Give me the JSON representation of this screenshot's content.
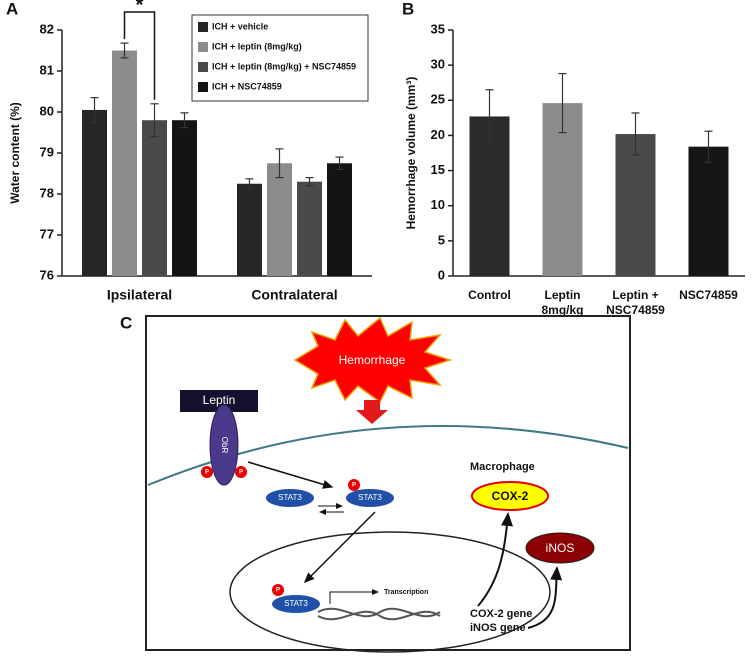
{
  "chart_data": [
    {
      "type": "bar",
      "panel_label": "A",
      "ylabel": "Water content (%)",
      "categories": [
        "Ipsilateral",
        "Contralateral"
      ],
      "series": [
        {
          "name": "ICH + vehicle",
          "color": "#262626",
          "values": [
            80.05,
            78.25
          ],
          "errors": [
            0.3,
            0.12
          ]
        },
        {
          "name": "ICH + leptin (8mg/kg)",
          "color": "#8c8c8c",
          "values": [
            81.5,
            78.75
          ],
          "errors": [
            0.18,
            0.35
          ]
        },
        {
          "name": "ICH + leptin (8mg/kg) + NSC74859",
          "color": "#4a4a4a",
          "values": [
            79.8,
            78.3
          ],
          "errors": [
            0.4,
            0.1
          ]
        },
        {
          "name": "ICH + NSC74859",
          "color": "#141414",
          "values": [
            79.8,
            78.75
          ],
          "errors": [
            0.18,
            0.15
          ]
        }
      ],
      "ylim": [
        76,
        82
      ],
      "yticks": [
        76,
        77,
        78,
        79,
        80,
        81,
        82
      ],
      "legend": "upper right",
      "annotations": [
        "*"
      ]
    },
    {
      "type": "bar",
      "panel_label": "B",
      "ylabel": "Hemorrhage volume (mm³)",
      "categories": [
        [
          "Control"
        ],
        [
          "Leptin",
          "8mg/kg"
        ],
        [
          "Leptin +",
          "NSC74859"
        ],
        [
          "NSC74859"
        ]
      ],
      "values": [
        22.7,
        24.6,
        20.2,
        18.4
      ],
      "errors": [
        3.8,
        4.2,
        3.0,
        2.2
      ],
      "colors": [
        "#2b2b2b",
        "#8c8c8c",
        "#4a4a4a",
        "#161616"
      ],
      "ylim": [
        0,
        35
      ],
      "yticks": [
        0,
        5,
        10,
        15,
        20,
        25,
        30,
        35
      ]
    }
  ],
  "diagram": {
    "panel_label": "C",
    "stimulus": "Hemorrhage",
    "ligand": "Leptin",
    "receptor": "ObR",
    "phospho": [
      "P",
      "P",
      "P",
      "P"
    ],
    "stat3": [
      "STAT3",
      "STAT3",
      "STAT3"
    ],
    "cell": "Macrophage",
    "transcription": "Transcription",
    "products": [
      "COX-2",
      "iNOS"
    ],
    "genes": [
      "COX-2 gene",
      "iNOS gene"
    ]
  }
}
